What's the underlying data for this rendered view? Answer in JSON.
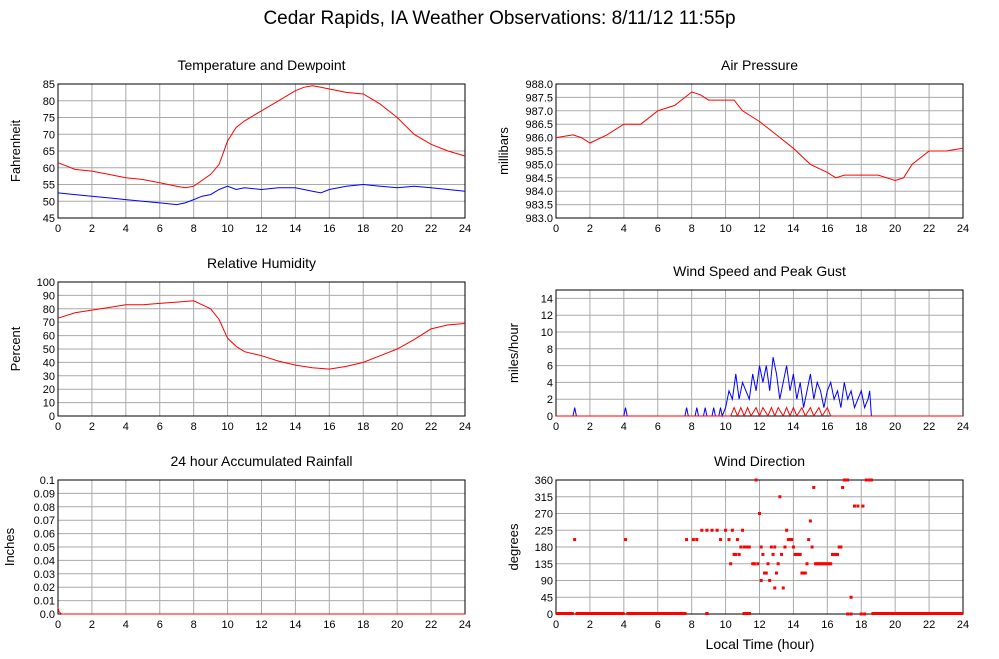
{
  "title": "Cedar Rapids, IA Weather Observations: 8/11/12 11:55p",
  "xlabel_bottom": "Local Time (hour)",
  "colors": {
    "primary": "#ff0000",
    "secondary": "#0000ff",
    "grid": "#aaaaaa"
  },
  "chart_data": [
    {
      "id": "temp",
      "type": "line",
      "title": "Temperature and Dewpoint",
      "ylabel": "Fahrenheit",
      "xlim": [
        0,
        24
      ],
      "ylim": [
        45,
        85
      ],
      "xticks": [
        0,
        2,
        4,
        6,
        8,
        10,
        12,
        14,
        16,
        18,
        20,
        22,
        24
      ],
      "yticks": [
        45,
        50,
        55,
        60,
        65,
        70,
        75,
        80,
        85
      ],
      "grid": true,
      "series": [
        {
          "color": "#ff0000",
          "x": [
            0,
            1,
            2,
            3,
            4,
            5,
            6,
            7,
            7.5,
            8,
            9,
            9.5,
            10,
            10.5,
            11,
            12,
            13,
            14,
            14.5,
            15,
            15.5,
            16,
            17,
            18,
            19,
            20,
            21,
            22,
            23,
            24
          ],
          "y": [
            61.5,
            59.5,
            59,
            58,
            57,
            56.5,
            55.5,
            54.5,
            54,
            54.5,
            58,
            61,
            68,
            72,
            74,
            77,
            80,
            83,
            84,
            84.5,
            84,
            83.5,
            82.5,
            82,
            79,
            75,
            70,
            67,
            65,
            63.5
          ]
        },
        {
          "color": "#0000ff",
          "x": [
            0,
            1,
            2,
            3,
            4,
            5,
            6,
            7,
            7.5,
            8,
            8.5,
            9,
            9.5,
            10,
            10.5,
            11,
            12,
            13,
            14,
            15,
            15.5,
            16,
            17,
            18,
            19,
            20,
            21,
            22,
            23,
            24
          ],
          "y": [
            52.5,
            52,
            51.5,
            51,
            50.5,
            50,
            49.5,
            49,
            49.5,
            50.5,
            51.5,
            52,
            53.5,
            54.5,
            53.5,
            54,
            53.5,
            54,
            54,
            53,
            52.5,
            53.5,
            54.5,
            55,
            54.5,
            54,
            54.5,
            54,
            53.5,
            53
          ]
        }
      ]
    },
    {
      "id": "pressure",
      "type": "line",
      "title": "Air Pressure",
      "ylabel": "millibars",
      "xlim": [
        0,
        24
      ],
      "ylim": [
        983.0,
        988.0
      ],
      "xticks": [
        0,
        2,
        4,
        6,
        8,
        10,
        12,
        14,
        16,
        18,
        20,
        22,
        24
      ],
      "yticks": [
        "983.0",
        "983.5",
        "984.0",
        "984.5",
        "985.0",
        "985.5",
        "986.0",
        "986.5",
        "987.0",
        "987.5",
        "988.0"
      ],
      "grid": true,
      "series": [
        {
          "color": "#ff0000",
          "x": [
            0,
            1,
            1.5,
            2,
            3,
            4,
            5,
            6,
            6.5,
            7,
            8,
            8.5,
            9,
            10,
            10.5,
            11,
            12,
            13,
            14,
            15,
            16,
            16.5,
            17,
            18,
            19,
            20,
            20.5,
            21,
            22,
            23,
            24
          ],
          "y": [
            986,
            986.1,
            986,
            985.8,
            986.1,
            986.5,
            986.5,
            987,
            987.1,
            987.2,
            987.7,
            987.6,
            987.4,
            987.4,
            987.4,
            987,
            986.6,
            986.1,
            985.6,
            985,
            984.7,
            984.5,
            984.6,
            984.6,
            984.6,
            984.4,
            984.5,
            985,
            985.5,
            985.5,
            985.6
          ]
        }
      ]
    },
    {
      "id": "humidity",
      "type": "line",
      "title": "Relative Humidity",
      "ylabel": "Percent",
      "xlim": [
        0,
        24
      ],
      "ylim": [
        0,
        100
      ],
      "xticks": [
        0,
        2,
        4,
        6,
        8,
        10,
        12,
        14,
        16,
        18,
        20,
        22,
        24
      ],
      "yticks": [
        0,
        10,
        20,
        30,
        40,
        50,
        60,
        70,
        80,
        90,
        100
      ],
      "grid": true,
      "series": [
        {
          "color": "#ff0000",
          "x": [
            0,
            1,
            2,
            3,
            4,
            5,
            6,
            7,
            8,
            8.5,
            9,
            9.5,
            10,
            10.5,
            11,
            12,
            13,
            14,
            15,
            16,
            17,
            18,
            19,
            20,
            21,
            22,
            23,
            24
          ],
          "y": [
            73,
            77,
            79,
            81,
            83,
            83,
            84,
            85,
            86,
            83,
            80,
            72,
            58,
            52,
            48,
            45,
            41,
            38,
            36,
            35,
            37,
            40,
            45,
            50,
            57,
            65,
            68,
            69
          ]
        }
      ]
    },
    {
      "id": "wind",
      "type": "line",
      "title": "Wind Speed and Peak Gust",
      "ylabel": "miles/hour",
      "xlim": [
        0,
        24
      ],
      "ylim": [
        0,
        15
      ],
      "xticks": [
        0,
        2,
        4,
        6,
        8,
        10,
        12,
        14,
        16,
        18,
        20,
        22,
        24
      ],
      "yticks": [
        0,
        2,
        4,
        6,
        8,
        10,
        12,
        14
      ],
      "grid": true,
      "series": [
        {
          "color": "#0000ff",
          "x": [
            0,
            1,
            1.1,
            1.2,
            4,
            4.1,
            4.2,
            7.6,
            7.7,
            7.8,
            8.2,
            8.3,
            8.4,
            8.7,
            8.8,
            8.9,
            9.2,
            9.3,
            9.4,
            9.6,
            9.7,
            9.8,
            10,
            10.2,
            10.4,
            10.6,
            10.8,
            11,
            11.2,
            11.4,
            11.6,
            11.8,
            12,
            12.2,
            12.4,
            12.6,
            12.8,
            13,
            13.2,
            13.4,
            13.6,
            13.8,
            14,
            14.2,
            14.4,
            14.6,
            14.8,
            15,
            15.2,
            15.4,
            15.6,
            15.8,
            16,
            16.2,
            16.4,
            16.6,
            16.8,
            17,
            17.2,
            17.4,
            17.6,
            17.8,
            18,
            18.2,
            18.4,
            18.5,
            18.6,
            18.7,
            24
          ],
          "y": [
            0,
            0,
            1,
            0,
            0,
            1,
            0,
            0,
            1,
            0,
            0,
            1,
            0,
            0,
            1,
            0,
            0,
            1,
            0,
            0,
            1,
            0,
            1,
            3,
            2,
            5,
            2,
            4,
            3,
            2,
            5,
            3,
            6,
            4,
            6,
            3,
            7,
            5,
            2,
            4,
            6,
            3,
            5,
            2,
            4,
            1,
            3,
            5,
            2,
            4,
            3,
            1,
            3,
            4,
            2,
            3,
            1,
            4,
            2,
            3,
            1,
            2,
            3,
            1,
            2,
            3,
            0,
            0,
            0
          ]
        },
        {
          "color": "#ff0000",
          "x": [
            0,
            10.3,
            10.5,
            10.7,
            10.9,
            11.1,
            11.3,
            11.5,
            11.8,
            12,
            12.2,
            12.5,
            12.7,
            12.9,
            13.1,
            13.4,
            13.6,
            13.8,
            14,
            14.2,
            14.5,
            14.7,
            15,
            15.2,
            15.5,
            15.7,
            16,
            16.2,
            16.4,
            24
          ],
          "y": [
            0,
            0,
            1,
            0,
            1,
            0,
            1,
            0,
            1,
            0,
            1,
            0,
            1,
            0,
            1,
            0,
            1,
            0,
            1,
            0,
            1,
            0,
            1,
            0,
            1,
            0,
            1,
            0,
            0,
            0
          ]
        }
      ]
    },
    {
      "id": "rain",
      "type": "line",
      "title": "24 hour Accumulated Rainfall",
      "ylabel": "Inches",
      "xlim": [
        0,
        24
      ],
      "ylim": [
        0,
        0.1
      ],
      "xticks": [
        0,
        2,
        4,
        6,
        8,
        10,
        12,
        14,
        16,
        18,
        20,
        22,
        24
      ],
      "yticks": [
        "0.0",
        "0.01",
        "0.02",
        "0.03",
        "0.04",
        "0.05",
        "0.06",
        "0.07",
        "0.08",
        "0.09",
        "0.1"
      ],
      "grid": true,
      "series": [
        {
          "color": "#ff0000",
          "x": [
            0,
            0.05,
            0.2,
            24
          ],
          "y": [
            0.005,
            0.002,
            0,
            0
          ]
        }
      ]
    },
    {
      "id": "direction",
      "type": "scatter",
      "title": "Wind Direction",
      "ylabel": "degrees",
      "xlabel": "Local Time (hour)",
      "xlim": [
        0,
        24
      ],
      "ylim": [
        0,
        360
      ],
      "xticks": [
        0,
        2,
        4,
        6,
        8,
        10,
        12,
        14,
        16,
        18,
        20,
        22,
        24
      ],
      "yticks": [
        0,
        45,
        90,
        135,
        180,
        225,
        270,
        315,
        360
      ],
      "grid": true,
      "baseline": {
        "from": 0,
        "to": 24,
        "y": 0,
        "gaps": [
          [
            1.05,
            1.15
          ],
          [
            4.05,
            4.15
          ],
          [
            7.7,
            8.8
          ],
          [
            9.0,
            11.0
          ],
          [
            11.5,
            18.6
          ]
        ]
      },
      "points": [
        [
          1.1,
          200
        ],
        [
          4.1,
          200
        ],
        [
          7.7,
          200
        ],
        [
          8.1,
          200
        ],
        [
          8.3,
          200
        ],
        [
          8.6,
          225
        ],
        [
          8.9,
          225
        ],
        [
          9.2,
          225
        ],
        [
          9.5,
          225
        ],
        [
          9.7,
          200
        ],
        [
          10.0,
          225
        ],
        [
          10.2,
          200
        ],
        [
          10.3,
          135
        ],
        [
          10.4,
          225
        ],
        [
          10.5,
          160
        ],
        [
          10.6,
          160
        ],
        [
          10.7,
          200
        ],
        [
          10.8,
          160
        ],
        [
          10.9,
          180
        ],
        [
          11.0,
          225
        ],
        [
          11.1,
          180
        ],
        [
          11.2,
          180
        ],
        [
          11.3,
          180
        ],
        [
          11.4,
          180
        ],
        [
          11.6,
          135
        ],
        [
          11.7,
          135
        ],
        [
          11.8,
          360
        ],
        [
          11.9,
          135
        ],
        [
          12.0,
          270
        ],
        [
          12.1,
          90
        ],
        [
          12.1,
          180
        ],
        [
          12.2,
          160
        ],
        [
          12.3,
          110
        ],
        [
          12.4,
          110
        ],
        [
          12.5,
          135
        ],
        [
          12.6,
          90
        ],
        [
          12.7,
          180
        ],
        [
          12.8,
          160
        ],
        [
          12.9,
          180
        ],
        [
          12.9,
          70
        ],
        [
          13.0,
          110
        ],
        [
          13.1,
          135
        ],
        [
          13.2,
          315
        ],
        [
          13.3,
          160
        ],
        [
          13.4,
          70
        ],
        [
          13.5,
          180
        ],
        [
          13.6,
          225
        ],
        [
          13.7,
          200
        ],
        [
          13.8,
          200
        ],
        [
          13.9,
          200
        ],
        [
          14.0,
          180
        ],
        [
          14.1,
          160
        ],
        [
          14.2,
          160
        ],
        [
          14.3,
          160
        ],
        [
          14.4,
          160
        ],
        [
          14.5,
          110
        ],
        [
          14.6,
          110
        ],
        [
          14.7,
          110
        ],
        [
          14.8,
          135
        ],
        [
          14.9,
          200
        ],
        [
          15.0,
          250
        ],
        [
          15.1,
          180
        ],
        [
          15.2,
          340
        ],
        [
          15.3,
          135
        ],
        [
          15.4,
          135
        ],
        [
          15.5,
          135
        ],
        [
          15.6,
          135
        ],
        [
          15.7,
          135
        ],
        [
          15.8,
          135
        ],
        [
          15.9,
          135
        ],
        [
          16.0,
          135
        ],
        [
          16.1,
          135
        ],
        [
          16.2,
          135
        ],
        [
          16.3,
          160
        ],
        [
          16.4,
          160
        ],
        [
          16.5,
          160
        ],
        [
          16.6,
          160
        ],
        [
          16.7,
          180
        ],
        [
          16.8,
          180
        ],
        [
          16.9,
          340
        ],
        [
          17.0,
          360
        ],
        [
          17.1,
          360
        ],
        [
          17.2,
          360
        ],
        [
          17.4,
          45
        ],
        [
          17.6,
          290
        ],
        [
          17.8,
          290
        ],
        [
          18.1,
          290
        ],
        [
          18.3,
          360
        ],
        [
          18.5,
          360
        ],
        [
          18.6,
          360
        ],
        [
          17.2,
          0
        ],
        [
          17.4,
          0
        ],
        [
          18.0,
          0
        ],
        [
          18.2,
          0
        ]
      ]
    }
  ]
}
